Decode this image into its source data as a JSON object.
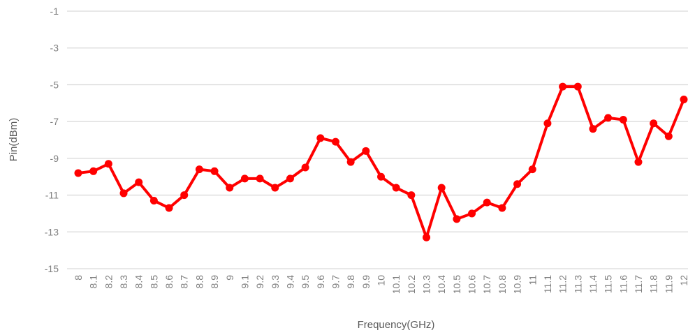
{
  "chart_data": {
    "type": "line",
    "x_label": "Frequency(GHz)",
    "y_label": "Pin(dBm)",
    "categories": [
      "8",
      "8.1",
      "8.2",
      "8.3",
      "8.4",
      "8.5",
      "8.6",
      "8.7",
      "8.8",
      "8.9",
      "9",
      "9.1",
      "9.2",
      "9.3",
      "9.4",
      "9.5",
      "9.6",
      "9.7",
      "9.8",
      "9.9",
      "10",
      "10.1",
      "10.2",
      "10.3",
      "10.4",
      "10.5",
      "10.6",
      "10.7",
      "10.8",
      "10.9",
      "11",
      "11.1",
      "11.2",
      "11.3",
      "11.4",
      "11.5",
      "11.6",
      "11.7",
      "11.8",
      "11.9",
      "12"
    ],
    "series": [
      {
        "name": "Pin",
        "color": "#ff0000",
        "values": [
          -9.8,
          -9.7,
          -9.3,
          -10.9,
          -10.3,
          -11.3,
          -11.7,
          -11.0,
          -9.6,
          -9.7,
          -10.6,
          -10.1,
          -10.1,
          -10.6,
          -10.1,
          -9.5,
          -7.9,
          -8.1,
          -9.2,
          -8.6,
          -10.0,
          -10.6,
          -11.0,
          -13.3,
          -10.6,
          -12.3,
          -12.0,
          -11.4,
          -11.7,
          -10.4,
          -9.6,
          -7.1,
          -5.1,
          -5.1,
          -7.4,
          -6.8,
          -6.9,
          -9.2,
          -7.1,
          -7.8,
          -5.8
        ]
      }
    ],
    "ylim": [
      -15,
      -1
    ],
    "yticks": [
      -15,
      -13,
      -11,
      -9,
      -7,
      -5,
      -3,
      -1
    ],
    "grid": true,
    "legend": false
  }
}
